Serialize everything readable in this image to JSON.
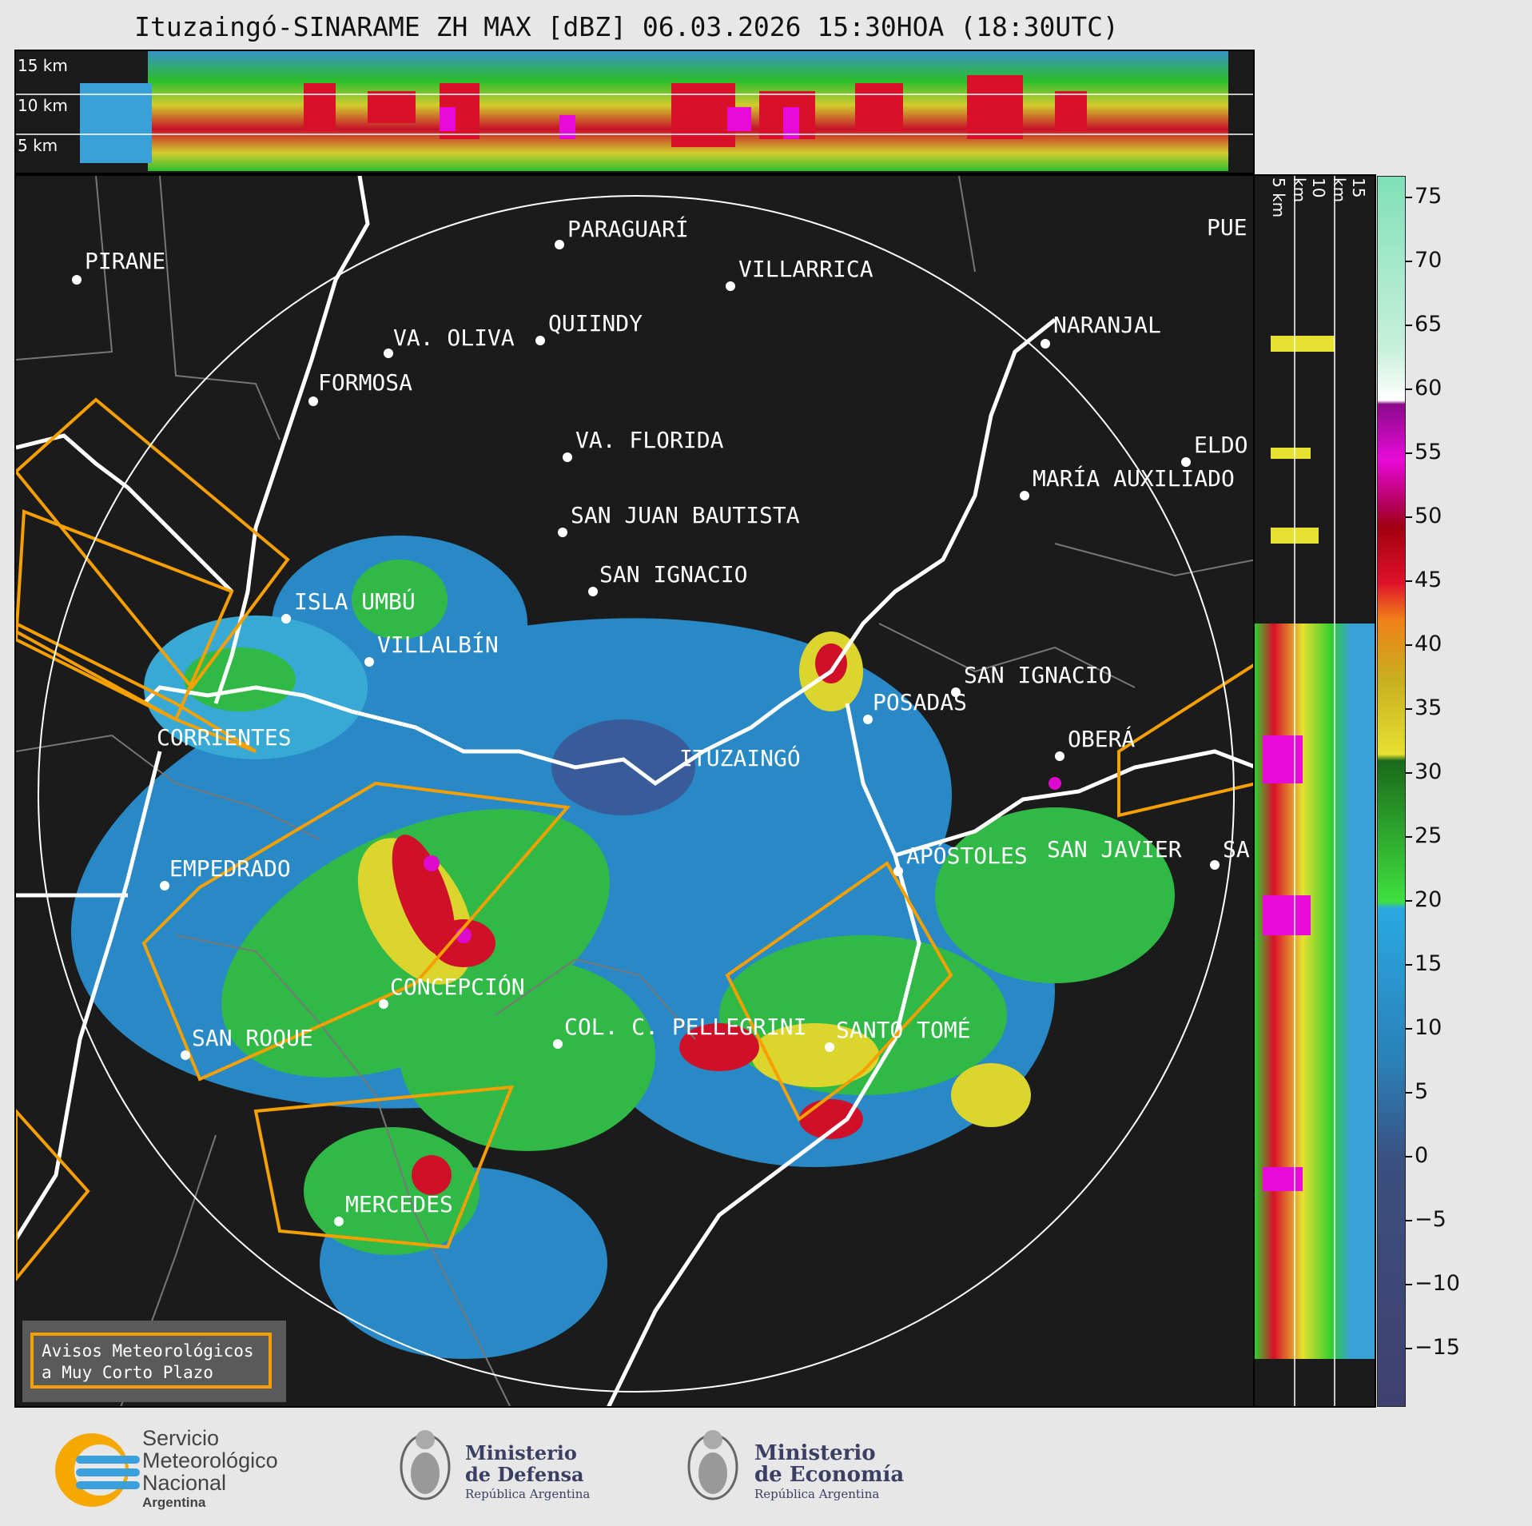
{
  "title": "Ituzaingó-SINARAME ZH MAX [dBZ] 06.03.2026 15:30HOA (18:30UTC)",
  "top_panel": {
    "height_labels": [
      "15 km",
      "10 km",
      "5 km"
    ]
  },
  "side_panel": {
    "height_labels": [
      "5 km",
      "10 km",
      "15 km"
    ]
  },
  "colorbar": {
    "unit": "dBZ",
    "ticks": [
      "75",
      "70",
      "65",
      "60",
      "55",
      "50",
      "45",
      "40",
      "35",
      "30",
      "25",
      "20",
      "15",
      "10",
      "5",
      "0",
      "−5",
      "−10",
      "−15"
    ]
  },
  "cities": [
    {
      "name": "PIRANE"
    },
    {
      "name": "PARAGUARÍ"
    },
    {
      "name": "VILLARRICA"
    },
    {
      "name": "QUIINDY"
    },
    {
      "name": "VA. OLIVA"
    },
    {
      "name": "FORMOSA"
    },
    {
      "name": "NARANJAL"
    },
    {
      "name": "PUE"
    },
    {
      "name": "VA. FLORIDA"
    },
    {
      "name": "ELDO"
    },
    {
      "name": "MARÍA AUXILIADO"
    },
    {
      "name": "SAN JUAN BAUTISTA"
    },
    {
      "name": "SAN IGNACIO"
    },
    {
      "name": "ISLA UMBÚ"
    },
    {
      "name": "VILLALBÍN"
    },
    {
      "name": "SAN IGNACIO"
    },
    {
      "name": "POSADAS"
    },
    {
      "name": "CORRIENTES"
    },
    {
      "name": "ITUZAINGÓ"
    },
    {
      "name": "OBERÁ"
    },
    {
      "name": "EMPEDRADO"
    },
    {
      "name": "APÓSTOLES"
    },
    {
      "name": "SAN JAVIER"
    },
    {
      "name": "SA"
    },
    {
      "name": "CONCEPCIÓN"
    },
    {
      "name": "COL. C. PELLEGRINI"
    },
    {
      "name": "SANTO TOMÉ"
    },
    {
      "name": "SAN ROQUE"
    },
    {
      "name": "MERCEDES"
    }
  ],
  "legend": {
    "line1": "Avisos Meteorológicos",
    "line2": "a Muy Corto Plazo"
  },
  "logos": {
    "smn": [
      "Servicio",
      "Meteorológico",
      "Nacional",
      "Argentina"
    ],
    "defensa": [
      "Ministerio",
      "de Defensa",
      "República Argentina"
    ],
    "economia": [
      "Ministerio",
      "de Economía",
      "República Argentina"
    ]
  },
  "colors": {
    "background": "#1b1b1b",
    "warning_outline": "#f5a000",
    "border": "#ffffff"
  }
}
